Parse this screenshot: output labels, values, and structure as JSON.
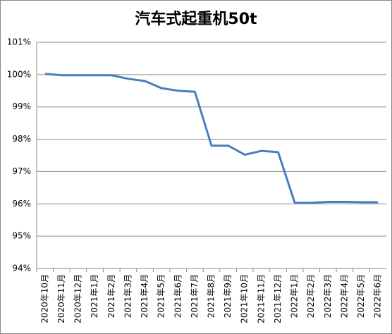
{
  "chart_data": {
    "type": "line",
    "title": "汽车式起重机50t",
    "categories": [
      "2020年10月",
      "2020年11月",
      "2020年12月",
      "2021年1月",
      "2021年2月",
      "2021年3月",
      "2021年4月",
      "2021年5月",
      "2021年6月",
      "2021年7月",
      "2021年8月",
      "2021年9月",
      "2021年10月",
      "2021年11月",
      "2021年12月",
      "2022年1月",
      "2022年2月",
      "2022年3月",
      "2022年4月",
      "2022年5月",
      "2022年6月"
    ],
    "values": [
      100.02,
      99.98,
      99.98,
      99.98,
      99.98,
      99.87,
      99.8,
      99.58,
      99.5,
      99.47,
      97.8,
      97.8,
      97.52,
      97.64,
      97.6,
      96.03,
      96.03,
      96.06,
      96.06,
      96.05,
      96.05
    ],
    "color": "#4a7ebb",
    "ylim": [
      94,
      101
    ],
    "yticks": [
      {
        "value": 94,
        "label": "94%"
      },
      {
        "value": 95,
        "label": "95%"
      },
      {
        "value": 96,
        "label": "96%"
      },
      {
        "value": 97,
        "label": "97%"
      },
      {
        "value": 98,
        "label": "98%"
      },
      {
        "value": 99,
        "label": "99%"
      },
      {
        "value": 100,
        "label": "100%"
      },
      {
        "value": 101,
        "label": "101%"
      }
    ],
    "grid": true
  }
}
